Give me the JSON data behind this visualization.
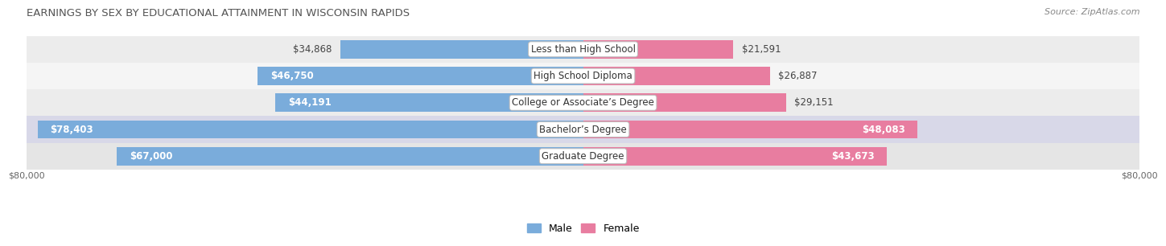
{
  "title": "EARNINGS BY SEX BY EDUCATIONAL ATTAINMENT IN WISCONSIN RAPIDS",
  "source": "Source: ZipAtlas.com",
  "categories": [
    "Less than High School",
    "High School Diploma",
    "College or Associate’s Degree",
    "Bachelor’s Degree",
    "Graduate Degree"
  ],
  "male_values": [
    34868,
    46750,
    44191,
    78403,
    67000
  ],
  "female_values": [
    21591,
    26887,
    29151,
    48083,
    43673
  ],
  "male_color": "#7aacdb",
  "female_color": "#e87da0",
  "max_value": 80000,
  "bar_height": 0.68,
  "row_colors": [
    "#ececec",
    "#f7f7f7",
    "#ececec",
    "#dcdcdc",
    "#e8e8e8"
  ],
  "label_inside_threshold": 38000,
  "title_fontsize": 9.5,
  "source_fontsize": 8,
  "value_fontsize": 8.5,
  "category_fontsize": 8.5,
  "axis_label_fontsize": 8
}
